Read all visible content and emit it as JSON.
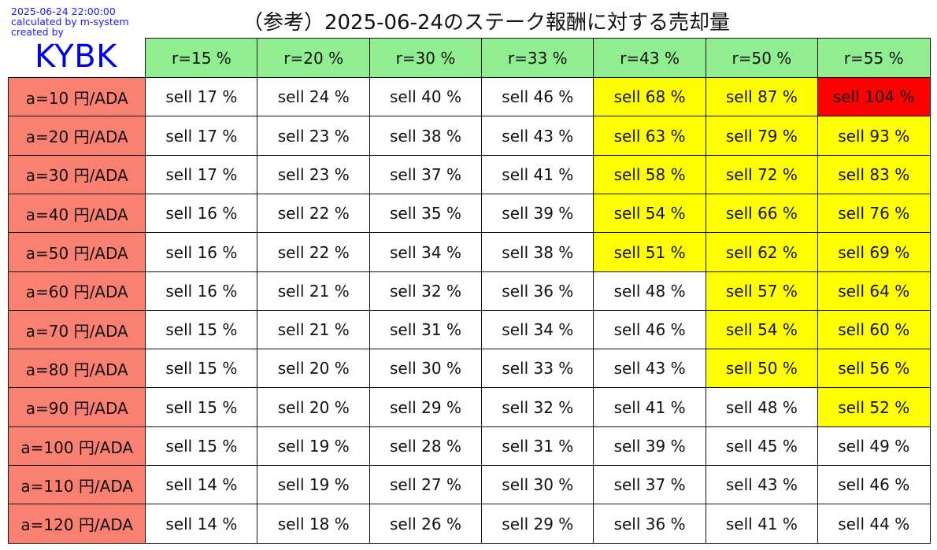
{
  "header": {
    "timestamp": "2025-06-24 22:00:00",
    "calculated_by": "calculated by m-system",
    "created_by": "created by",
    "brand": "KYBK",
    "title": "（参考）2025-06-24のステーク報酬に対する売却量"
  },
  "colors": {
    "column_header_bg": "#90ee90",
    "row_header_bg": "#fa8072",
    "normal_bg": "#ffffff",
    "warning_bg": "#ffff00",
    "danger_bg": "#ff0000"
  },
  "chart_data": {
    "type": "table",
    "title": "（参考）2025-06-24のステーク報酬に対する売却量",
    "columns": [
      "r=15 %",
      "r=20 %",
      "r=30 %",
      "r=33 %",
      "r=43 %",
      "r=50 %",
      "r=55 %"
    ],
    "rows": [
      {
        "label": "a=10 円/ADA",
        "values": [
          17,
          24,
          40,
          46,
          68,
          87,
          104
        ],
        "levels": [
          "normal",
          "normal",
          "normal",
          "normal",
          "warning",
          "warning",
          "danger"
        ]
      },
      {
        "label": "a=20 円/ADA",
        "values": [
          17,
          23,
          38,
          43,
          63,
          79,
          93
        ],
        "levels": [
          "normal",
          "normal",
          "normal",
          "normal",
          "warning",
          "warning",
          "warning"
        ]
      },
      {
        "label": "a=30 円/ADA",
        "values": [
          17,
          23,
          37,
          41,
          58,
          72,
          83
        ],
        "levels": [
          "normal",
          "normal",
          "normal",
          "normal",
          "warning",
          "warning",
          "warning"
        ]
      },
      {
        "label": "a=40 円/ADA",
        "values": [
          16,
          22,
          35,
          39,
          54,
          66,
          76
        ],
        "levels": [
          "normal",
          "normal",
          "normal",
          "normal",
          "warning",
          "warning",
          "warning"
        ]
      },
      {
        "label": "a=50 円/ADA",
        "values": [
          16,
          22,
          34,
          38,
          51,
          62,
          69
        ],
        "levels": [
          "normal",
          "normal",
          "normal",
          "normal",
          "warning",
          "warning",
          "warning"
        ]
      },
      {
        "label": "a=60 円/ADA",
        "values": [
          16,
          21,
          32,
          36,
          48,
          57,
          64
        ],
        "levels": [
          "normal",
          "normal",
          "normal",
          "normal",
          "normal",
          "warning",
          "warning"
        ]
      },
      {
        "label": "a=70 円/ADA",
        "values": [
          15,
          21,
          31,
          34,
          46,
          54,
          60
        ],
        "levels": [
          "normal",
          "normal",
          "normal",
          "normal",
          "normal",
          "warning",
          "warning"
        ]
      },
      {
        "label": "a=80 円/ADA",
        "values": [
          15,
          20,
          30,
          33,
          43,
          50,
          56
        ],
        "levels": [
          "normal",
          "normal",
          "normal",
          "normal",
          "normal",
          "warning",
          "warning"
        ]
      },
      {
        "label": "a=90 円/ADA",
        "values": [
          15,
          20,
          29,
          32,
          41,
          48,
          52
        ],
        "levels": [
          "normal",
          "normal",
          "normal",
          "normal",
          "normal",
          "normal",
          "warning"
        ]
      },
      {
        "label": "a=100 円/ADA",
        "values": [
          15,
          19,
          28,
          31,
          39,
          45,
          49
        ],
        "levels": [
          "normal",
          "normal",
          "normal",
          "normal",
          "normal",
          "normal",
          "normal"
        ]
      },
      {
        "label": "a=110 円/ADA",
        "values": [
          14,
          19,
          27,
          30,
          37,
          43,
          46
        ],
        "levels": [
          "normal",
          "normal",
          "normal",
          "normal",
          "normal",
          "normal",
          "normal"
        ]
      },
      {
        "label": "a=120 円/ADA",
        "values": [
          14,
          18,
          26,
          29,
          36,
          41,
          44
        ],
        "levels": [
          "normal",
          "normal",
          "normal",
          "normal",
          "normal",
          "normal",
          "normal"
        ]
      }
    ],
    "cell_prefix": "sell ",
    "cell_suffix": " %"
  }
}
